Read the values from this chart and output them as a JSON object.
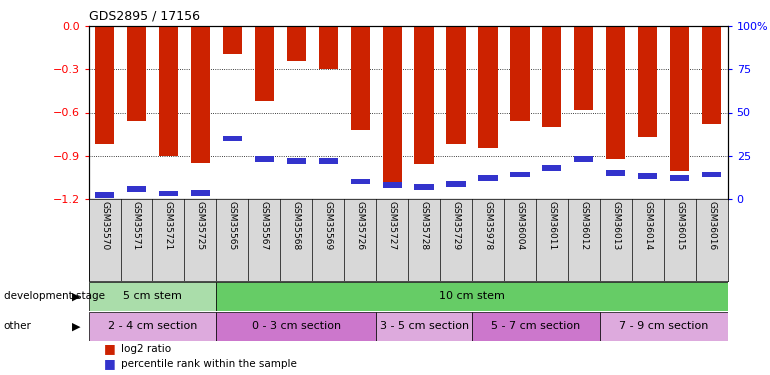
{
  "title": "GDS2895 / 17156",
  "samples": [
    "GSM35570",
    "GSM35571",
    "GSM35721",
    "GSM35725",
    "GSM35565",
    "GSM35567",
    "GSM35568",
    "GSM35569",
    "GSM35726",
    "GSM35727",
    "GSM35728",
    "GSM35729",
    "GSM35978",
    "GSM36004",
    "GSM36011",
    "GSM36012",
    "GSM36013",
    "GSM36014",
    "GSM36015",
    "GSM36016"
  ],
  "log2_ratio": [
    -0.82,
    -0.66,
    -0.9,
    -0.95,
    -0.19,
    -0.52,
    -0.24,
    -0.3,
    -0.72,
    -1.08,
    -0.96,
    -0.82,
    -0.85,
    -0.66,
    -0.7,
    -0.58,
    -0.92,
    -0.77,
    -1.01,
    -0.68
  ],
  "percentile_rank": [
    2.0,
    5.5,
    3.0,
    3.5,
    35.0,
    23.0,
    22.0,
    22.0,
    10.0,
    8.0,
    7.0,
    8.5,
    12.0,
    14.0,
    18.0,
    23.0,
    15.0,
    13.0,
    12.0,
    14.0
  ],
  "bar_color": "#cc2200",
  "blue_color": "#3333cc",
  "ylim_left": [
    -1.2,
    0
  ],
  "ylim_right": [
    0,
    100
  ],
  "yticks_left": [
    0,
    -0.3,
    -0.6,
    -0.9,
    -1.2
  ],
  "yticks_right": [
    0,
    25,
    50,
    75,
    100
  ],
  "dev_stage_groups": [
    {
      "label": "5 cm stem",
      "start": 0,
      "end": 4,
      "color": "#aaddaa"
    },
    {
      "label": "10 cm stem",
      "start": 4,
      "end": 20,
      "color": "#66cc66"
    }
  ],
  "other_groups": [
    {
      "label": "2 - 4 cm section",
      "start": 0,
      "end": 4,
      "color": "#ddaadd"
    },
    {
      "label": "0 - 3 cm section",
      "start": 4,
      "end": 9,
      "color": "#cc77cc"
    },
    {
      "label": "3 - 5 cm section",
      "start": 9,
      "end": 12,
      "color": "#ddaadd"
    },
    {
      "label": "5 - 7 cm section",
      "start": 12,
      "end": 16,
      "color": "#cc77cc"
    },
    {
      "label": "7 - 9 cm section",
      "start": 16,
      "end": 20,
      "color": "#ddaadd"
    }
  ],
  "dev_stage_label": "development stage",
  "other_label": "other",
  "legend_items": [
    {
      "color": "#cc2200",
      "label": "log2 ratio"
    },
    {
      "color": "#3333cc",
      "label": "percentile rank within the sample"
    }
  ],
  "bg_color": "#ffffff",
  "xlabels_bg": "#d8d8d8"
}
